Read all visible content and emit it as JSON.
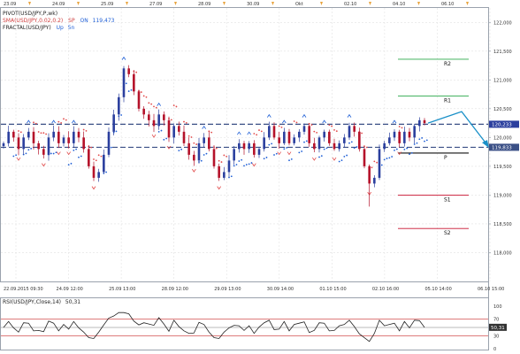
{
  "indicators": {
    "line1": "PIVOT(USD/JPY,P,wk)",
    "line2_name": "SMA(USD/JPY,0.02,0.2)",
    "line2_suffix": "SP",
    "line2_status": "ON",
    "line2_value": "119,473",
    "line3": "FRACTAL(USD/JPY)",
    "line3_status": "Up",
    "line3_period": "5n"
  },
  "top_dates": [
    "23.09",
    "24.09",
    "25.09",
    "27.09",
    "28.09",
    "30.09",
    "Okt",
    "02.10",
    "04.10",
    "06.10"
  ],
  "price_labels": {
    "current": "120,233",
    "current_low": "119,833"
  },
  "chart_data": {
    "type": "candlestick",
    "title": "",
    "xlabel": "",
    "ylabel": "",
    "ylim": [
      117.5,
      122.25
    ],
    "y_ticks": [
      {
        "value": 122.0,
        "label": "122,000"
      },
      {
        "value": 121.5,
        "label": "121,500"
      },
      {
        "value": 121.0,
        "label": "121,000"
      },
      {
        "value": 120.5,
        "label": "120,500"
      },
      {
        "value": 120.0,
        "label": "120,000"
      },
      {
        "value": 119.5,
        "label": "119,500"
      },
      {
        "value": 119.0,
        "label": "119,000"
      },
      {
        "value": 118.5,
        "label": "118,500"
      },
      {
        "value": 118.0,
        "label": "118,000"
      }
    ],
    "x_labels": [
      "22.09.2015 09:30",
      "24.09 12:00",
      "25.09 13:00",
      "28.09 12:00",
      "29.09 13:00",
      "30.09 14:00",
      "01.10 15:00",
      "02.10 16:00",
      "05.10 14:00",
      "06.10 15:00"
    ],
    "pivot_levels": [
      {
        "name": "R2",
        "value": 121.36
      },
      {
        "name": "R1",
        "value": 120.72
      },
      {
        "name": "P",
        "value": 119.73
      },
      {
        "name": "S1",
        "value": 119.0
      },
      {
        "name": "S2",
        "value": 118.42
      }
    ],
    "range_lines": [
      120.23,
      119.83
    ],
    "close_path": [
      119.9,
      120.1,
      120.0,
      119.8,
      120.0,
      120.1,
      119.9,
      119.8,
      119.7,
      120.0,
      120.1,
      119.9,
      120.0,
      119.9,
      120.1,
      120.0,
      119.8,
      119.5,
      119.3,
      119.4,
      119.7,
      120.1,
      120.4,
      120.7,
      121.2,
      121.1,
      120.8,
      120.5,
      120.4,
      120.3,
      120.2,
      120.4,
      120.3,
      120.0,
      120.2,
      120.1,
      119.9,
      119.7,
      119.6,
      119.9,
      120.0,
      119.8,
      119.5,
      119.3,
      119.4,
      119.6,
      119.8,
      119.9,
      119.8,
      119.9,
      119.7,
      119.8,
      120.0,
      120.2,
      120.0,
      119.9,
      120.1,
      119.9,
      120.0,
      120.1,
      120.2,
      119.9,
      119.8,
      120.0,
      120.1,
      119.9,
      119.8,
      119.9,
      120.0,
      120.2,
      120.1,
      119.8,
      119.5,
      119.2,
      119.3,
      119.8,
      119.9,
      120.0,
      120.1,
      119.9,
      120.1,
      120.0,
      120.2,
      120.3,
      120.25
    ],
    "forecast": [
      [
        120.25,
        120.45
      ],
      [
        120.45,
        119.85
      ]
    ],
    "rsi": {
      "name": "RSI(USD/JPY,Close,14)",
      "value": "50,31",
      "ylim": [
        0,
        100
      ],
      "ticks": [
        {
          "value": 100,
          "label": "100"
        },
        {
          "value": 70,
          "label": "70"
        },
        {
          "value": 30,
          "label": "30"
        },
        {
          "value": 0,
          "label": "0"
        }
      ],
      "levels": [
        70,
        30
      ],
      "current": 50.31
    }
  },
  "colors": {
    "bull": "#2b3f9e",
    "bear": "#b5122a",
    "sar": "#e24a4a",
    "sar_up": "#1f5fd6",
    "pivot": "#111111",
    "resistance": "#2aa84a",
    "support": "#c8102e",
    "range": "#3a4f86",
    "forecast": "#1a90c8",
    "grid": "#e2e2e2",
    "rsi_line": "#222222",
    "rsi_levels": "#d35050",
    "marker": "#e8a33d"
  }
}
